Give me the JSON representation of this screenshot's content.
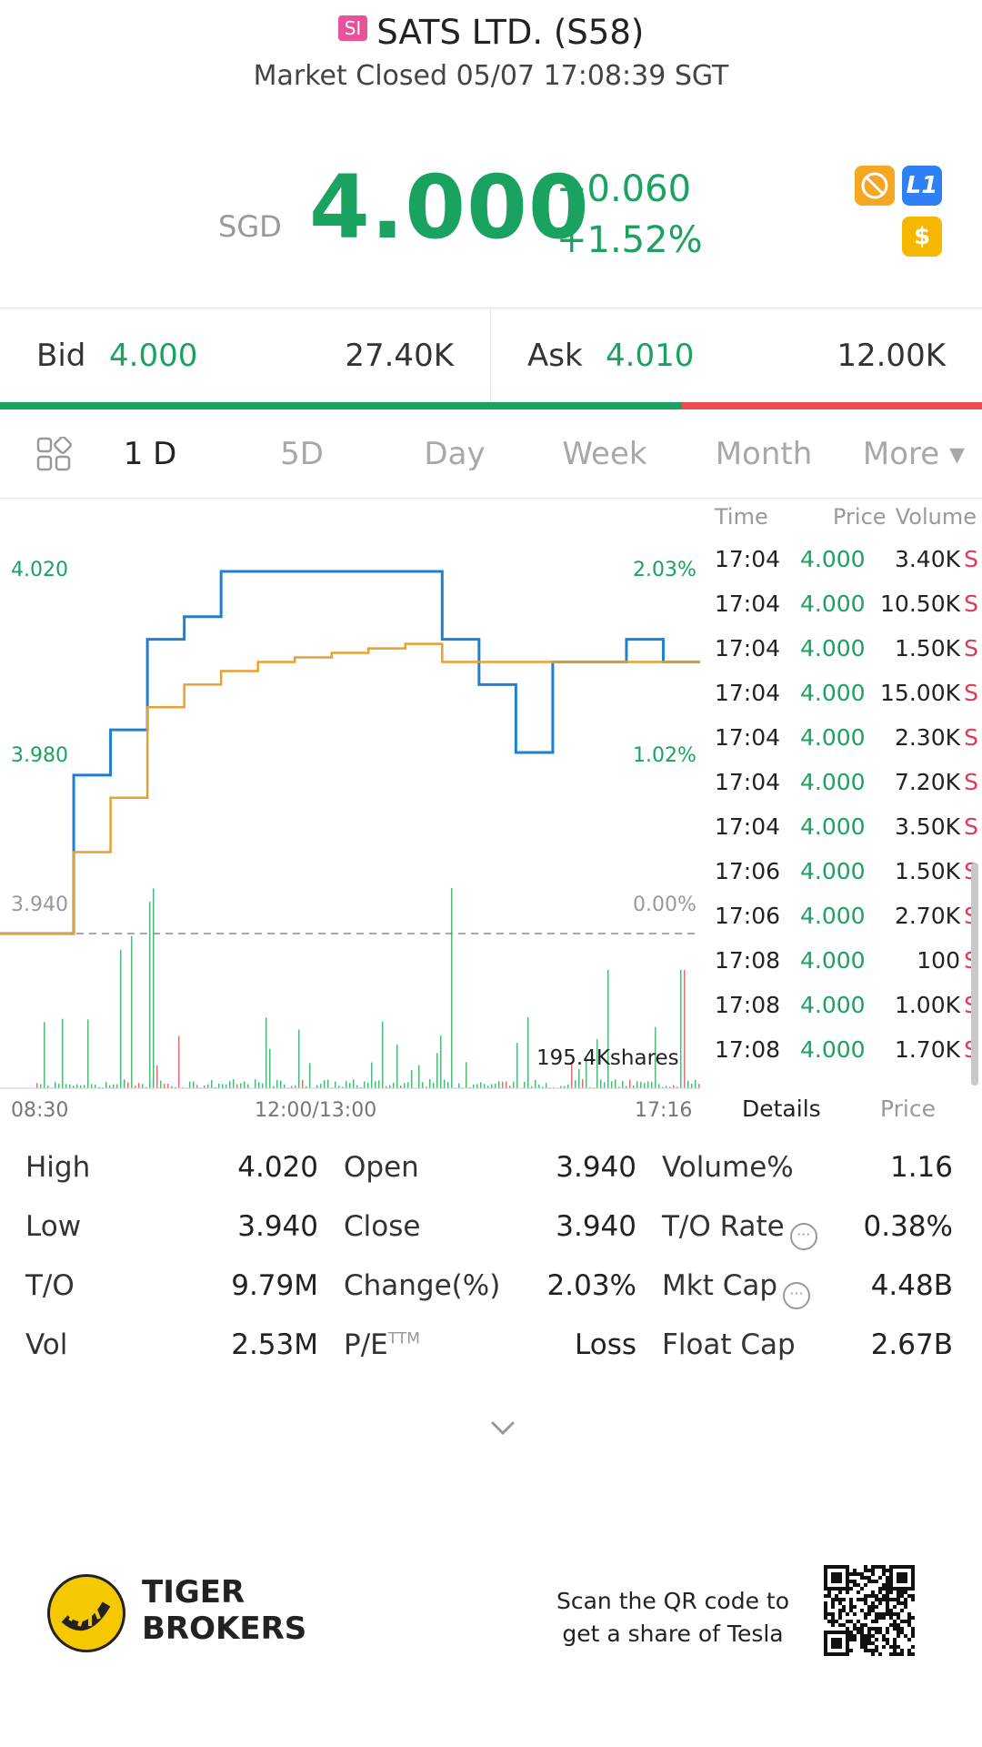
{
  "header": {
    "badge": "SI",
    "title": "SATS LTD. (S58)",
    "status": "Market Closed 05/07 17:08:39 SGT"
  },
  "quote": {
    "currency": "SGD",
    "price": "4.000",
    "change": "+0.060",
    "change_pct": "+1.52%",
    "badges": [
      {
        "icon": "no-short-icon",
        "color": "#f5a623"
      },
      {
        "icon": "level1-icon",
        "label": "L1",
        "color": "#2f7ff5"
      },
      {
        "icon": "dollar-icon",
        "label": "$",
        "color": "#f5b700"
      }
    ]
  },
  "bidask": {
    "bid_label": "Bid",
    "bid_price": "4.000",
    "bid_size": "27.40K",
    "ask_label": "Ask",
    "ask_price": "4.010",
    "ask_size": "12.00K",
    "bid_share": 0.694
  },
  "tabs": [
    "1 D",
    "5D",
    "Day",
    "Week",
    "Month",
    "More ▾"
  ],
  "chart": {
    "y_labels": [
      "4.020",
      "3.980",
      "3.940"
    ],
    "pct_labels": [
      "2.03%",
      "1.02%",
      "0.00%"
    ],
    "x_labels": [
      "08:30",
      "12:00/13:00",
      "17:16"
    ],
    "volume_label": "195.4Kshares",
    "price_color": "#1f7fd1",
    "avg_color": "#e8a030"
  },
  "chart_data": {
    "type": "line",
    "title": "",
    "xlabel": "",
    "ylabel": "",
    "ylim": [
      3.94,
      4.02
    ],
    "prev_close": 3.94,
    "x": [
      "08:30",
      "09:00",
      "09:10",
      "09:20",
      "09:30",
      "09:45",
      "10:00",
      "10:30",
      "11:00",
      "11:30",
      "12:00",
      "13:30",
      "14:00",
      "14:30",
      "15:00",
      "15:30",
      "16:00",
      "16:30",
      "17:00",
      "17:16"
    ],
    "series": [
      {
        "values": [
          3.94,
          3.94,
          3.975,
          3.985,
          4.005,
          4.01,
          4.02,
          4.02,
          4.02,
          4.02,
          4.02,
          4.02,
          4.005,
          3.995,
          3.98,
          4.0,
          4.0,
          4.005,
          4.0,
          4.0
        ]
      },
      {
        "values": [
          3.94,
          3.94,
          3.958,
          3.97,
          3.99,
          3.995,
          3.998,
          4.0,
          4.001,
          4.002,
          4.003,
          4.004,
          4.0,
          4.0,
          4.0,
          4.0,
          4.0,
          4.0,
          4.0,
          4.0
        ]
      }
    ]
  },
  "ticks": {
    "headers": {
      "time": "Time",
      "price": "Price",
      "volume": "Volume"
    },
    "rows": [
      {
        "time": "17:04",
        "price": "4.000",
        "volume": "3.40K",
        "side": "S"
      },
      {
        "time": "17:04",
        "price": "4.000",
        "volume": "10.50K",
        "side": "S"
      },
      {
        "time": "17:04",
        "price": "4.000",
        "volume": "1.50K",
        "side": "S"
      },
      {
        "time": "17:04",
        "price": "4.000",
        "volume": "15.00K",
        "side": "S"
      },
      {
        "time": "17:04",
        "price": "4.000",
        "volume": "2.30K",
        "side": "S"
      },
      {
        "time": "17:04",
        "price": "4.000",
        "volume": "7.20K",
        "side": "S"
      },
      {
        "time": "17:04",
        "price": "4.000",
        "volume": "3.50K",
        "side": "S"
      },
      {
        "time": "17:06",
        "price": "4.000",
        "volume": "1.50K",
        "side": "S"
      },
      {
        "time": "17:06",
        "price": "4.000",
        "volume": "2.70K",
        "side": "S"
      },
      {
        "time": "17:08",
        "price": "4.000",
        "volume": "100",
        "side": "S"
      },
      {
        "time": "17:08",
        "price": "4.000",
        "volume": "1.00K",
        "side": "S"
      },
      {
        "time": "17:08",
        "price": "4.000",
        "volume": "1.70K",
        "side": "S"
      }
    ],
    "footer": {
      "details": "Details",
      "price": "Price"
    }
  },
  "stats": {
    "rows": [
      [
        {
          "label": "High",
          "value": "4.020"
        },
        {
          "label": "Open",
          "value": "3.940"
        },
        {
          "label": "Volume%",
          "value": "1.16"
        }
      ],
      [
        {
          "label": "Low",
          "value": "3.940"
        },
        {
          "label": "Close",
          "value": "3.940"
        },
        {
          "label": "T/O Rate",
          "value": "0.38%"
        }
      ],
      [
        {
          "label": "T/O",
          "value": "9.79M"
        },
        {
          "label": "Change(%)",
          "value": "2.03%"
        },
        {
          "label": "Mkt Cap",
          "value": "4.48B"
        }
      ],
      [
        {
          "label": "Vol",
          "value": "2.53M"
        },
        {
          "label": "P/E",
          "sup": "TTM",
          "value": "Loss"
        },
        {
          "label": "Float Cap",
          "value": "2.67B"
        }
      ]
    ]
  },
  "footer": {
    "brand_line1": "TIGER",
    "brand_line2": "BROKERS",
    "scan_line1": "Scan the QR code to",
    "scan_line2": "get a share of Tesla"
  }
}
